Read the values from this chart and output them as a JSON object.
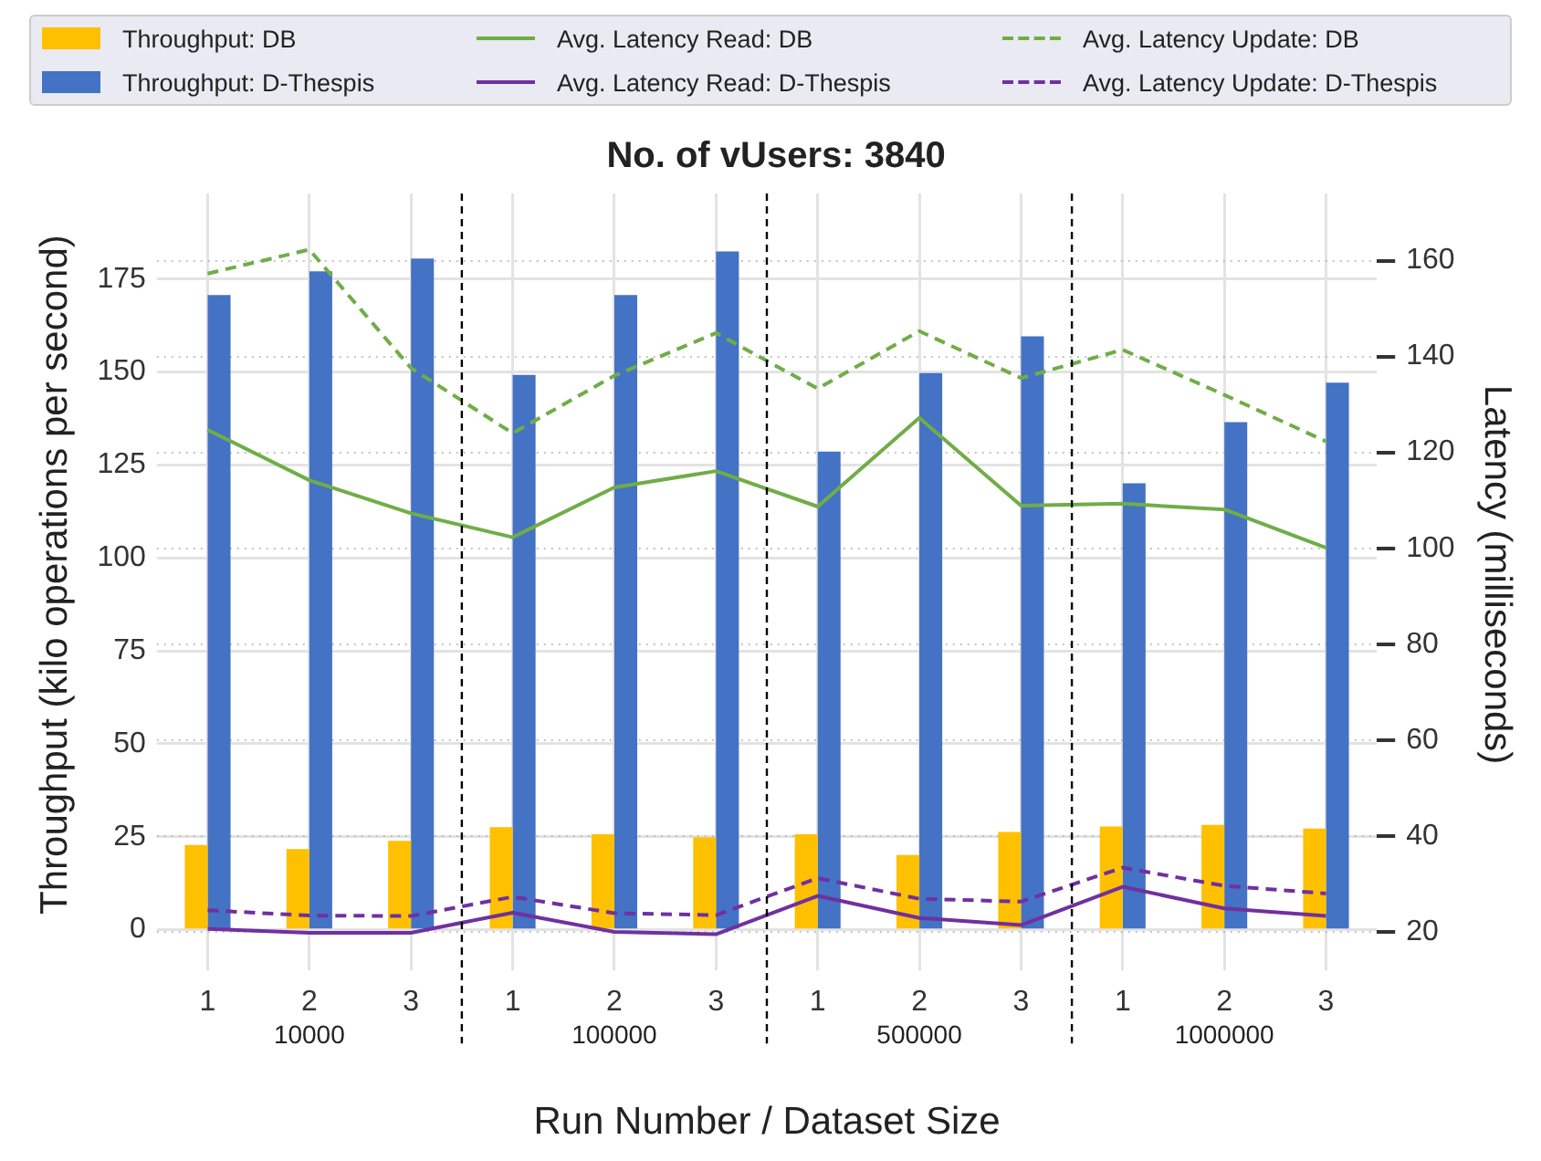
{
  "chart_data": {
    "type": "bar",
    "title": "No. of vUsers: 3840",
    "xlabel": "Run Number / Dataset Size",
    "ylabel": "Throughput (kilo operations per second)",
    "y2label": "Latency (milliseconds)",
    "categories": [
      "1",
      "2",
      "3",
      "1",
      "2",
      "3",
      "1",
      "2",
      "3",
      "1",
      "2",
      "3"
    ],
    "series": [
      {
        "name": "Throughput: DB",
        "color": "#ffc000",
        "values": [
          22.8,
          21.7,
          23.9,
          27.6,
          25.7,
          24.9,
          25.7,
          20.1,
          26.3,
          27.8,
          28.2,
          27.2
        ]
      },
      {
        "name": "Throughput: D-Thespis",
        "color": "#4472c4",
        "values": [
          170.7,
          177.1,
          180.5,
          149.2,
          170.7,
          182.4,
          128.6,
          149.7,
          159.6,
          120.1,
          136.5,
          147.1
        ]
      },
      {
        "name": "Avg. Latency Read: DB",
        "type": "line",
        "axis": "y2",
        "color": "#70ad47",
        "line_style": "solid",
        "values": [
          124.7,
          114.2,
          107.3,
          102.3,
          112.7,
          116.1,
          108.7,
          127.2,
          108.9,
          109.3,
          108.1,
          100.1
        ]
      },
      {
        "name": "Avg. Latency Read: D-Thespis",
        "type": "line",
        "axis": "y2",
        "color": "#7030a0",
        "line_style": "solid",
        "values": [
          20.6,
          19.8,
          19.8,
          24.0,
          20.0,
          19.5,
          27.5,
          22.9,
          21.4,
          29.4,
          24.9,
          23.3
        ]
      },
      {
        "name": "Avg. Latency Update: DB",
        "type": "line",
        "axis": "y2",
        "color": "#70ad47",
        "line_style": "dashed",
        "values": [
          157.3,
          162.3,
          137.6,
          124.0,
          136.0,
          144.9,
          133.3,
          145.3,
          135.5,
          141.4,
          132.0,
          122.3
        ]
      },
      {
        "name": "Avg. Latency Update: D-Thespis",
        "type": "line",
        "axis": "y2",
        "color": "#7030a0",
        "line_style": "dashed",
        "values": [
          24.5,
          23.4,
          23.3,
          27.3,
          23.9,
          23.5,
          31.2,
          26.9,
          26.3,
          33.4,
          29.6,
          28.0
        ]
      }
    ],
    "ylim": [
      -7,
      198
    ],
    "yticks": [
      0,
      25,
      50,
      75,
      100,
      125,
      150,
      175
    ],
    "y2lim": [
      15,
      174
    ],
    "y2ticks": [
      20,
      40,
      60,
      80,
      100,
      120,
      140,
      160
    ],
    "annotations": [
      "10000",
      "100000",
      "500000",
      "1000000"
    ],
    "grid": true,
    "legend": "top",
    "marker": "none"
  }
}
